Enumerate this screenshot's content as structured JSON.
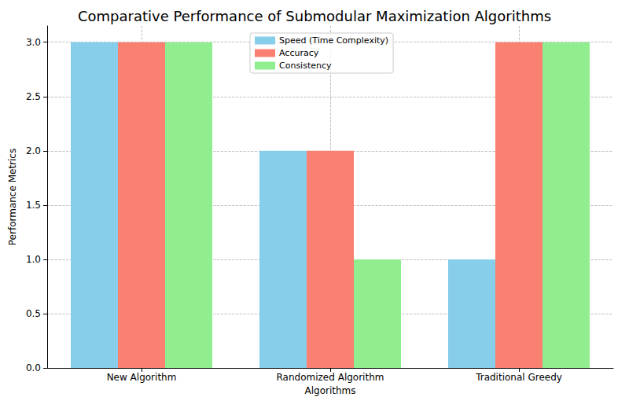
{
  "chart_data": {
    "type": "bar",
    "title": "Comparative Performance of Submodular Maximization Algorithms",
    "x_label": "Algorithms",
    "y_label": "Performance Metrics",
    "categories": [
      "New Algorithm",
      "Randomized Algorithm",
      "Traditional Greedy"
    ],
    "series": [
      {
        "name": "Speed (Time Complexity)",
        "color": "#87ceeb",
        "values": [
          3,
          2,
          1
        ]
      },
      {
        "name": "Accuracy",
        "color": "#fa8072",
        "values": [
          3,
          2,
          3
        ]
      },
      {
        "name": "Consistency",
        "color": "#90ee90",
        "values": [
          3,
          1,
          3
        ]
      }
    ],
    "ylim": [
      0,
      3.15
    ],
    "yticks": [
      {
        "value": 0,
        "label": "0.0"
      },
      0.5,
      {
        "value": 1,
        "label": "1.0"
      },
      1.5,
      {
        "value": 2,
        "label": "2.0"
      },
      2.5,
      {
        "value": 3,
        "label": "3.0"
      }
    ],
    "grid": true,
    "legend": "top"
  }
}
